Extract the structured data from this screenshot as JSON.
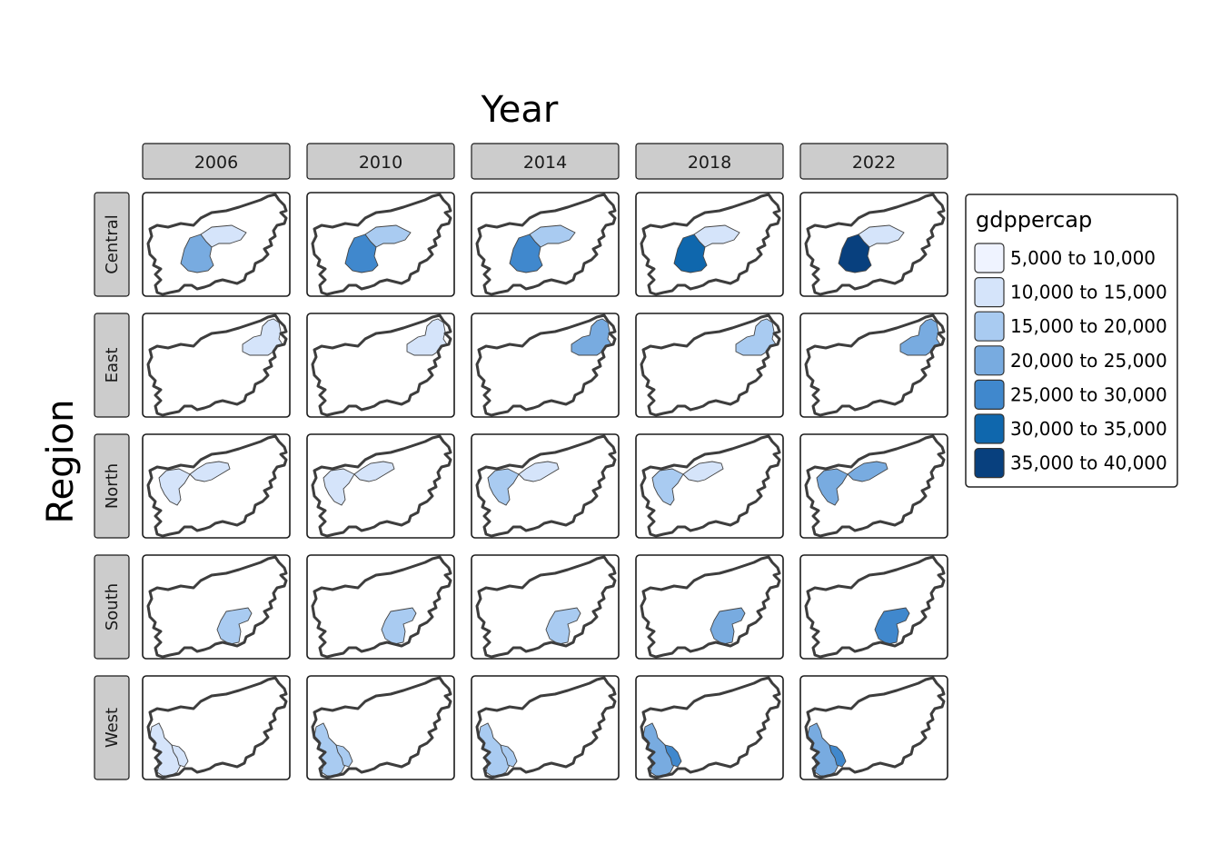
{
  "col_title": "Year",
  "row_title": "Region",
  "columns": [
    "2006",
    "2010",
    "2014",
    "2018",
    "2022"
  ],
  "rows": [
    "Central",
    "East",
    "North",
    "South",
    "West"
  ],
  "legend": {
    "title": "gdppercap",
    "classes": [
      {
        "label": "5,000 to 10,000",
        "color": "#eff3ff"
      },
      {
        "label": "10,000 to 15,000",
        "color": "#d5e4fa"
      },
      {
        "label": "15,000 to 20,000",
        "color": "#a9cbf1"
      },
      {
        "label": "20,000 to 25,000",
        "color": "#78abe0"
      },
      {
        "label": "25,000 to 30,000",
        "color": "#4088cd"
      },
      {
        "label": "30,000 to 35,000",
        "color": "#0f67ad"
      },
      {
        "label": "35,000 to 40,000",
        "color": "#08407e"
      }
    ]
  },
  "cells": {
    "Central": [
      [
        3,
        1
      ],
      [
        4,
        2
      ],
      [
        4,
        2
      ],
      [
        5,
        1
      ],
      [
        6,
        1
      ]
    ],
    "East": [
      [
        1,
        1
      ],
      [
        1,
        1
      ],
      [
        3,
        2
      ],
      [
        2,
        2
      ],
      [
        3,
        3
      ]
    ],
    "North": [
      [
        1,
        1
      ],
      [
        1,
        1
      ],
      [
        2,
        1
      ],
      [
        2,
        1
      ],
      [
        3,
        3
      ]
    ],
    "South": [
      [
        2,
        1
      ],
      [
        2,
        2
      ],
      [
        2,
        1
      ],
      [
        3,
        2
      ],
      [
        4,
        3
      ]
    ],
    "West": [
      [
        1,
        1,
        1
      ],
      [
        2,
        2,
        1
      ],
      [
        2,
        2,
        1
      ],
      [
        3,
        4,
        2
      ],
      [
        3,
        4,
        2
      ]
    ]
  }
}
